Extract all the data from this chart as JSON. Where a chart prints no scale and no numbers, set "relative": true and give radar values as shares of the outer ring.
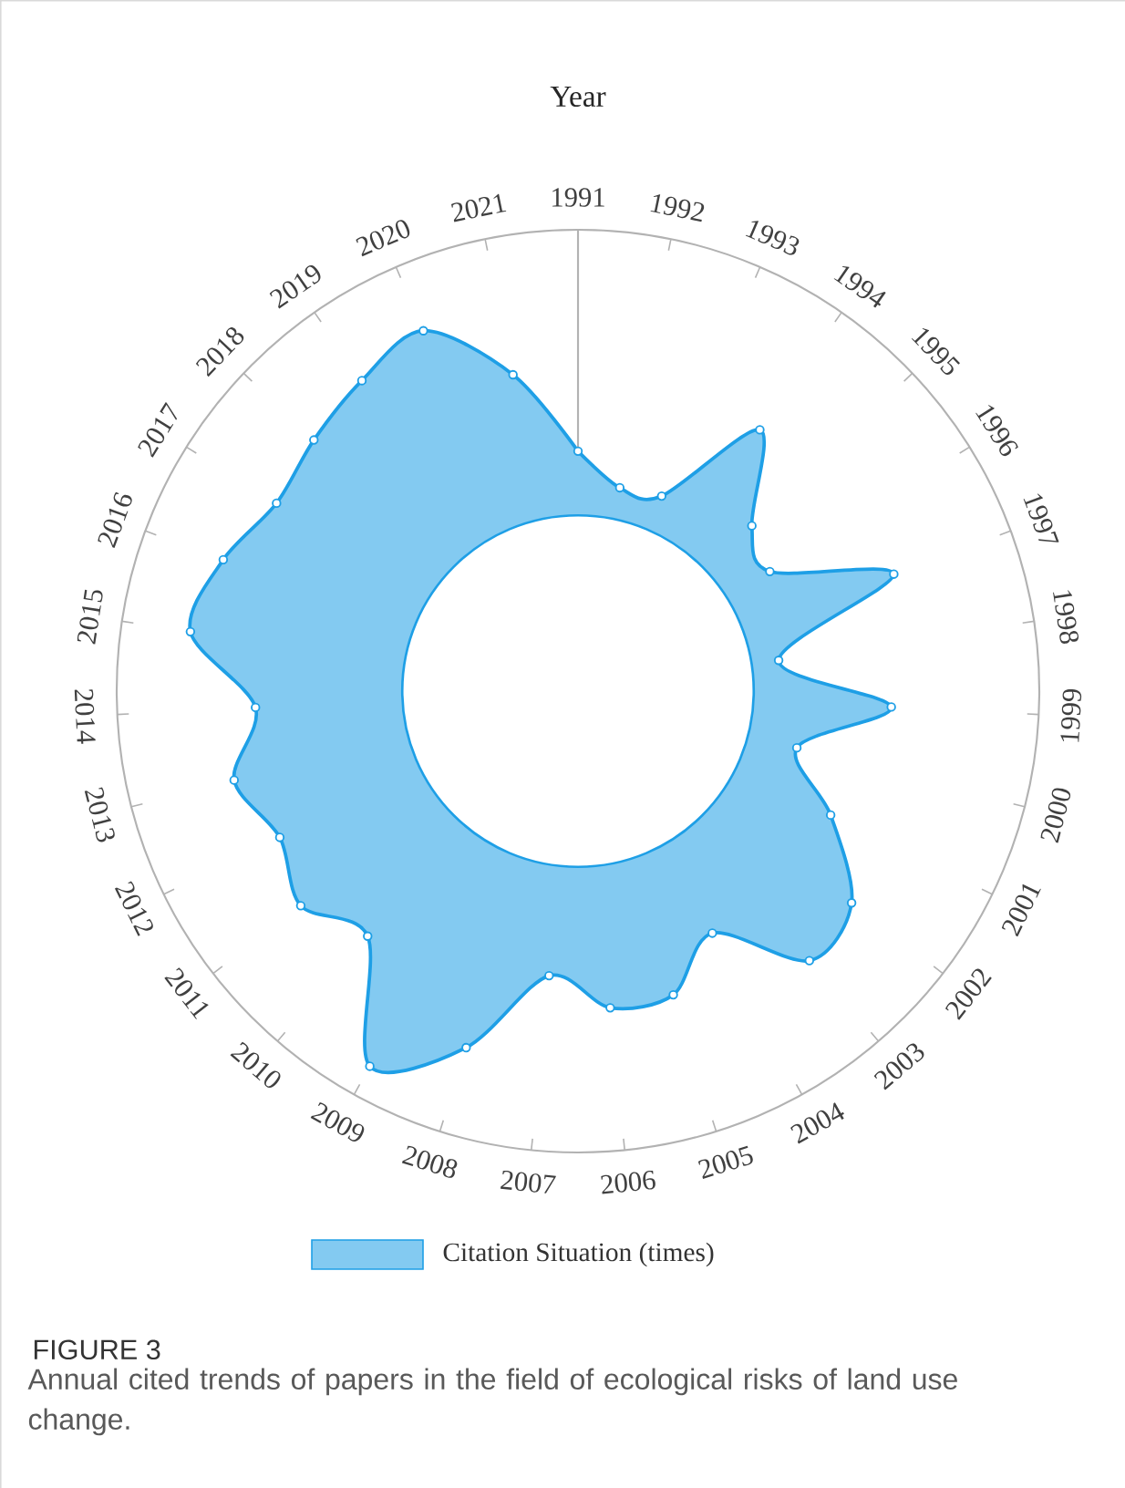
{
  "chart_data": {
    "type": "radar",
    "title": "Year",
    "relative": true,
    "legend": "bottom",
    "marker": "circle",
    "categories": [
      "1991",
      "1992",
      "1993",
      "1994",
      "1995",
      "1996",
      "1997",
      "1998",
      "1999",
      "2000",
      "2001",
      "2002",
      "2003",
      "2004",
      "2005",
      "2006",
      "2007",
      "2008",
      "2009",
      "2010",
      "2011",
      "2012",
      "2013",
      "2014",
      "2015",
      "2016",
      "2017",
      "2018",
      "2019",
      "2020",
      "2021"
    ],
    "series": [
      {
        "name": "Citation Situation (times)",
        "color": "#1e9fe6",
        "values": [
          0.52,
          0.45,
          0.46,
          0.69,
          0.52,
          0.49,
          0.73,
          0.44,
          0.68,
          0.49,
          0.61,
          0.75,
          0.77,
          0.6,
          0.69,
          0.69,
          0.62,
          0.81,
          0.93,
          0.7,
          0.76,
          0.72,
          0.77,
          0.7,
          0.85,
          0.82,
          0.77,
          0.79,
          0.82,
          0.85,
          0.7
        ]
      }
    ],
    "annotations": [
      "FIGURE 3",
      "Annual cited trends of papers in the field of ecological risks of land use change."
    ]
  }
}
